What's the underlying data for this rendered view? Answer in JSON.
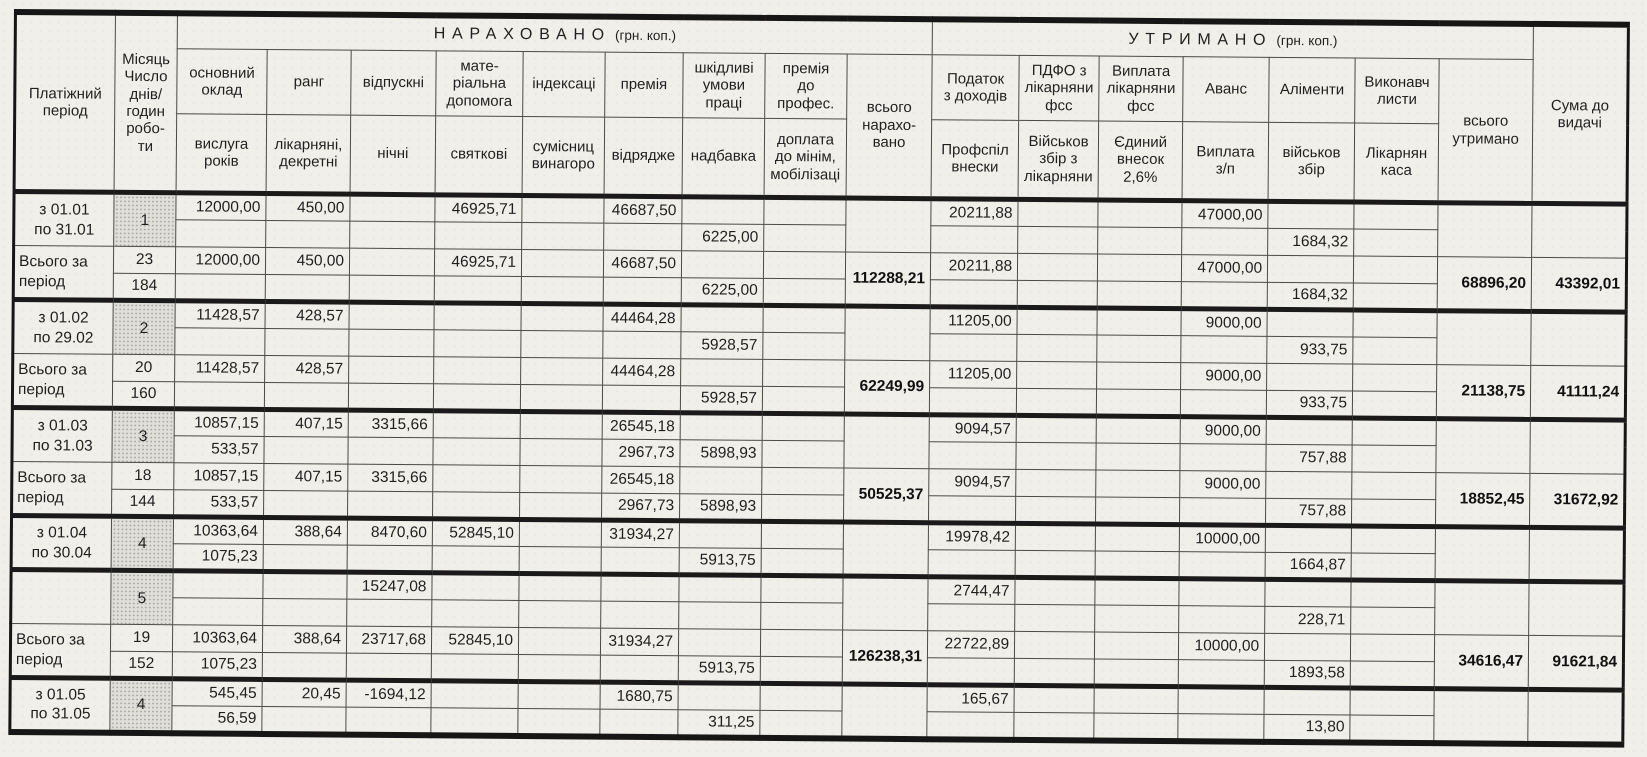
{
  "header": {
    "period": "Платіжний\nперіод",
    "month": "Місяць\nЧисло\nднів/\nгодин\nробо-\nти",
    "accrued_title": "НАРАХОВАНО",
    "withheld_title": "УТРИМАНО",
    "currency_unit": "(грн. коп.)",
    "accrued_cols": [
      {
        "top": "основний\nоклад",
        "bottom": "вислуга\nроків"
      },
      {
        "top": "ранг",
        "bottom": "лікарняні,\nдекретні"
      },
      {
        "top": "відпускні",
        "bottom": "нічні"
      },
      {
        "top": "мате-\nріальна\nдопомога",
        "bottom": "святкові"
      },
      {
        "top": "індексаці",
        "bottom": "сумісниц\nвинагоро"
      },
      {
        "top": "премія",
        "bottom": "відрядже"
      },
      {
        "top": "шкідливі\nумови\nпраці",
        "bottom": "надбавка"
      },
      {
        "top": "премія\nдо\nпрофес.",
        "bottom": "доплата\nдо мінім,\nмобілізаці"
      }
    ],
    "accrued_total": "всього\nнарахо-\nвано",
    "withheld_cols": [
      {
        "top": "Податок\nз доходів",
        "bottom": "Профспіл\nвнески"
      },
      {
        "top": "ПДФО з\nлікарняни\nфсс",
        "bottom": "Військов\nзбір з\nлікарняни"
      },
      {
        "top": "Виплата\nлікарняни\nфсс",
        "bottom": "Єдиний\nвнесок\n2,6%"
      },
      {
        "top": "Аванс",
        "bottom": "Виплата\nз/п"
      },
      {
        "top": "Аліменти",
        "bottom": "військов\nзбір"
      },
      {
        "top": "Виконавч\nлисти",
        "bottom": "Лікарнян\nкаса"
      }
    ],
    "withheld_total": "всього\nутримано",
    "payout": "Сума до\nвидачі"
  },
  "blocks": [
    {
      "period": "з 01.01\nпо 31.01",
      "total_label": "Всього за\nперіод",
      "months": [
        {
          "month": "1",
          "r1": [
            "12000,00",
            "450,00",
            "",
            "46925,71",
            "",
            "46687,50",
            "",
            "",
            "20211,88",
            "",
            "",
            "47000,00",
            "",
            ""
          ],
          "r2": [
            "",
            "",
            "",
            "",
            "",
            "",
            "6225,00",
            "",
            "",
            "",
            "",
            "",
            "1684,32",
            ""
          ]
        }
      ],
      "total": {
        "days": "23",
        "hours": "184",
        "r1": [
          "12000,00",
          "450,00",
          "",
          "46925,71",
          "",
          "46687,50",
          "",
          "",
          "20211,88",
          "",
          "",
          "47000,00",
          "",
          ""
        ],
        "r2": [
          "",
          "",
          "",
          "",
          "",
          "",
          "6225,00",
          "",
          "",
          "",
          "",
          "",
          "1684,32",
          ""
        ],
        "accrued": "112288,21",
        "withheld": "68896,20",
        "payout": "43392,01"
      }
    },
    {
      "period": "з 01.02\nпо 29.02",
      "total_label": "Всього за\nперіод",
      "months": [
        {
          "month": "2",
          "r1": [
            "11428,57",
            "428,57",
            "",
            "",
            "",
            "44464,28",
            "",
            "",
            "11205,00",
            "",
            "",
            "9000,00",
            "",
            ""
          ],
          "r2": [
            "",
            "",
            "",
            "",
            "",
            "",
            "5928,57",
            "",
            "",
            "",
            "",
            "",
            "933,75",
            ""
          ]
        }
      ],
      "total": {
        "days": "20",
        "hours": "160",
        "r1": [
          "11428,57",
          "428,57",
          "",
          "",
          "",
          "44464,28",
          "",
          "",
          "11205,00",
          "",
          "",
          "9000,00",
          "",
          ""
        ],
        "r2": [
          "",
          "",
          "",
          "",
          "",
          "",
          "5928,57",
          "",
          "",
          "",
          "",
          "",
          "933,75",
          ""
        ],
        "accrued": "62249,99",
        "withheld": "21138,75",
        "payout": "41111,24"
      }
    },
    {
      "period": "з 01.03\nпо 31.03",
      "total_label": "Всього за\nперіод",
      "months": [
        {
          "month": "3",
          "r1": [
            "10857,15",
            "407,15",
            "3315,66",
            "",
            "",
            "26545,18",
            "",
            "",
            "9094,57",
            "",
            "",
            "9000,00",
            "",
            ""
          ],
          "r2": [
            "533,57",
            "",
            "",
            "",
            "",
            "2967,73",
            "5898,93",
            "",
            "",
            "",
            "",
            "",
            "757,88",
            ""
          ]
        }
      ],
      "total": {
        "days": "18",
        "hours": "144",
        "r1": [
          "10857,15",
          "407,15",
          "3315,66",
          "",
          "",
          "26545,18",
          "",
          "",
          "9094,57",
          "",
          "",
          "9000,00",
          "",
          ""
        ],
        "r2": [
          "533,57",
          "",
          "",
          "",
          "",
          "2967,73",
          "5898,93",
          "",
          "",
          "",
          "",
          "",
          "757,88",
          ""
        ],
        "accrued": "50525,37",
        "withheld": "18852,45",
        "payout": "31672,92"
      }
    },
    {
      "period": "з 01.04\nпо 30.04",
      "total_label": "Всього за\nперіод",
      "months": [
        {
          "month": "4",
          "r1": [
            "10363,64",
            "388,64",
            "8470,60",
            "52845,10",
            "",
            "31934,27",
            "",
            "",
            "19978,42",
            "",
            "",
            "10000,00",
            "",
            ""
          ],
          "r2": [
            "1075,23",
            "",
            "",
            "",
            "",
            "",
            "5913,75",
            "",
            "",
            "",
            "",
            "",
            "1664,87",
            ""
          ]
        },
        {
          "month": "5",
          "r1": [
            "",
            "",
            "15247,08",
            "",
            "",
            "",
            "",
            "",
            "2744,47",
            "",
            "",
            "",
            "",
            ""
          ],
          "r2": [
            "",
            "",
            "",
            "",
            "",
            "",
            "",
            "",
            "",
            "",
            "",
            "",
            "228,71",
            ""
          ]
        }
      ],
      "total": {
        "days": "19",
        "hours": "152",
        "r1": [
          "10363,64",
          "388,64",
          "23717,68",
          "52845,10",
          "",
          "31934,27",
          "",
          "",
          "22722,89",
          "",
          "",
          "10000,00",
          "",
          ""
        ],
        "r2": [
          "1075,23",
          "",
          "",
          "",
          "",
          "",
          "5913,75",
          "",
          "",
          "",
          "",
          "",
          "1893,58",
          ""
        ],
        "accrued": "126238,31",
        "withheld": "34616,47",
        "payout": "91621,84"
      }
    },
    {
      "period": "з 01.05\nпо 31.05",
      "months": [
        {
          "month": "4",
          "r1": [
            "545,45",
            "20,45",
            "-1694,12",
            "",
            "",
            "1680,75",
            "",
            "",
            "165,67",
            "",
            "",
            "",
            "",
            ""
          ],
          "r2": [
            "56,59",
            "",
            "",
            "",
            "",
            "",
            "311,25",
            "",
            "",
            "",
            "",
            "",
            "13,80",
            ""
          ]
        }
      ],
      "total": null
    }
  ]
}
